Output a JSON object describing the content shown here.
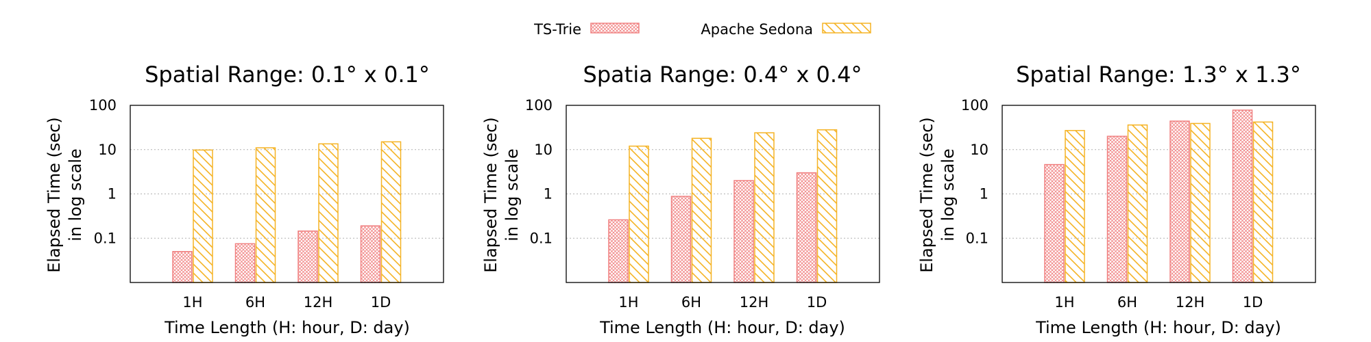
{
  "legend": {
    "placement": "top-center",
    "entries": [
      {
        "label": "TS-Trie",
        "color": "#f08080",
        "pattern": "crosshatch"
      },
      {
        "label": "Apache Sedona",
        "color": "#f5b324",
        "pattern": "diagonal"
      }
    ]
  },
  "chart_data": [
    {
      "type": "bar",
      "title": "Spatial Range: 0.1° x 0.1°",
      "xlabel": "Time Length (H: hour, D: day)",
      "ylabel": [
        "Elapsed Time (sec)",
        "in log scale"
      ],
      "yscale": "log",
      "ylim": [
        0.01,
        100
      ],
      "yticks": [
        100,
        10,
        1,
        0.1
      ],
      "ytick_labels": [
        "100",
        "10",
        "1",
        "0.1"
      ],
      "grid": "horizontal-dotted",
      "categories": [
        "1H",
        "6H",
        "12H",
        "1D"
      ],
      "series": [
        {
          "name": "TS-Trie",
          "values": [
            0.05,
            0.075,
            0.145,
            0.19
          ]
        },
        {
          "name": "Apache Sedona",
          "values": [
            9.8,
            11,
            13.5,
            15
          ]
        }
      ]
    },
    {
      "type": "bar",
      "title": "Spatia Range: 0.4° x 0.4°",
      "xlabel": "Time Length (H: hour, D: day)",
      "ylabel": [
        "Elapsed Time (sec)",
        "in log scale"
      ],
      "yscale": "log",
      "ylim": [
        0.01,
        100
      ],
      "yticks": [
        100,
        10,
        1,
        0.1
      ],
      "ytick_labels": [
        "100",
        "10",
        "1",
        "0.1"
      ],
      "grid": "horizontal-dotted",
      "categories": [
        "1H",
        "6H",
        "12H",
        "1D"
      ],
      "series": [
        {
          "name": "TS-Trie",
          "values": [
            0.26,
            0.88,
            2.0,
            3.0
          ]
        },
        {
          "name": "Apache Sedona",
          "values": [
            12,
            18,
            24,
            28
          ]
        }
      ]
    },
    {
      "type": "bar",
      "title": "Spatial Range: 1.3° x 1.3°",
      "xlabel": "Time Length (H: hour, D: day)",
      "ylabel": [
        "Elapsed Time (sec)",
        "in log scale"
      ],
      "yscale": "log",
      "ylim": [
        0.01,
        100
      ],
      "yticks": [
        100,
        10,
        1,
        0.1
      ],
      "ytick_labels": [
        "100",
        "10",
        "1",
        "0.1"
      ],
      "grid": "horizontal-dotted",
      "categories": [
        "1H",
        "6H",
        "12H",
        "1D"
      ],
      "series": [
        {
          "name": "TS-Trie",
          "values": [
            4.6,
            20,
            44,
            78
          ]
        },
        {
          "name": "Apache Sedona",
          "values": [
            27,
            36,
            39,
            42
          ]
        }
      ]
    }
  ]
}
